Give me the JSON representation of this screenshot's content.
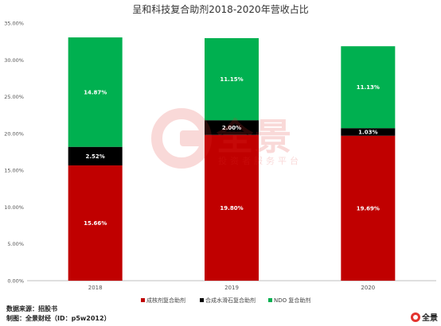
{
  "chart_data": {
    "type": "stacked-bar",
    "title": "呈和科技复合助剂2018-2020年营收占比",
    "categories": [
      "2018",
      "2019",
      "2020"
    ],
    "ylim": [
      0,
      35
    ],
    "yticks": [
      "0.00%",
      "5.00%",
      "10.00%",
      "15.00%",
      "20.00%",
      "25.00%",
      "30.00%",
      "35.00%"
    ],
    "ytick_values": [
      0,
      5,
      10,
      15,
      20,
      25,
      30,
      35
    ],
    "grid": false,
    "legend_position": "bottom",
    "series": [
      {
        "name": "成核剂复合助剂",
        "color": "#c00000",
        "values": [
          15.66,
          19.8,
          19.69
        ],
        "labels": [
          "15.66%",
          "19.80%",
          "19.69%"
        ]
      },
      {
        "name": "合成水滑石复合助剂",
        "color": "#000000",
        "values": [
          2.52,
          2.0,
          1.03
        ],
        "labels": [
          "2.52%",
          "2.00%",
          "1.03%"
        ]
      },
      {
        "name": "NDO 复合助剂",
        "color": "#00b050",
        "values": [
          14.87,
          11.15,
          11.13
        ],
        "labels": [
          "14.87%",
          "11.15%",
          "11.13%"
        ]
      }
    ]
  },
  "watermark": {
    "brand": "全景",
    "subtitle": "投资者服务平台"
  },
  "footer": {
    "source": "数据来源：招股书",
    "maker": "制图：全景财经（ID：p5w2012）"
  },
  "corner_logo": {
    "text": "全景",
    "icon": "p5w-logo-icon"
  }
}
